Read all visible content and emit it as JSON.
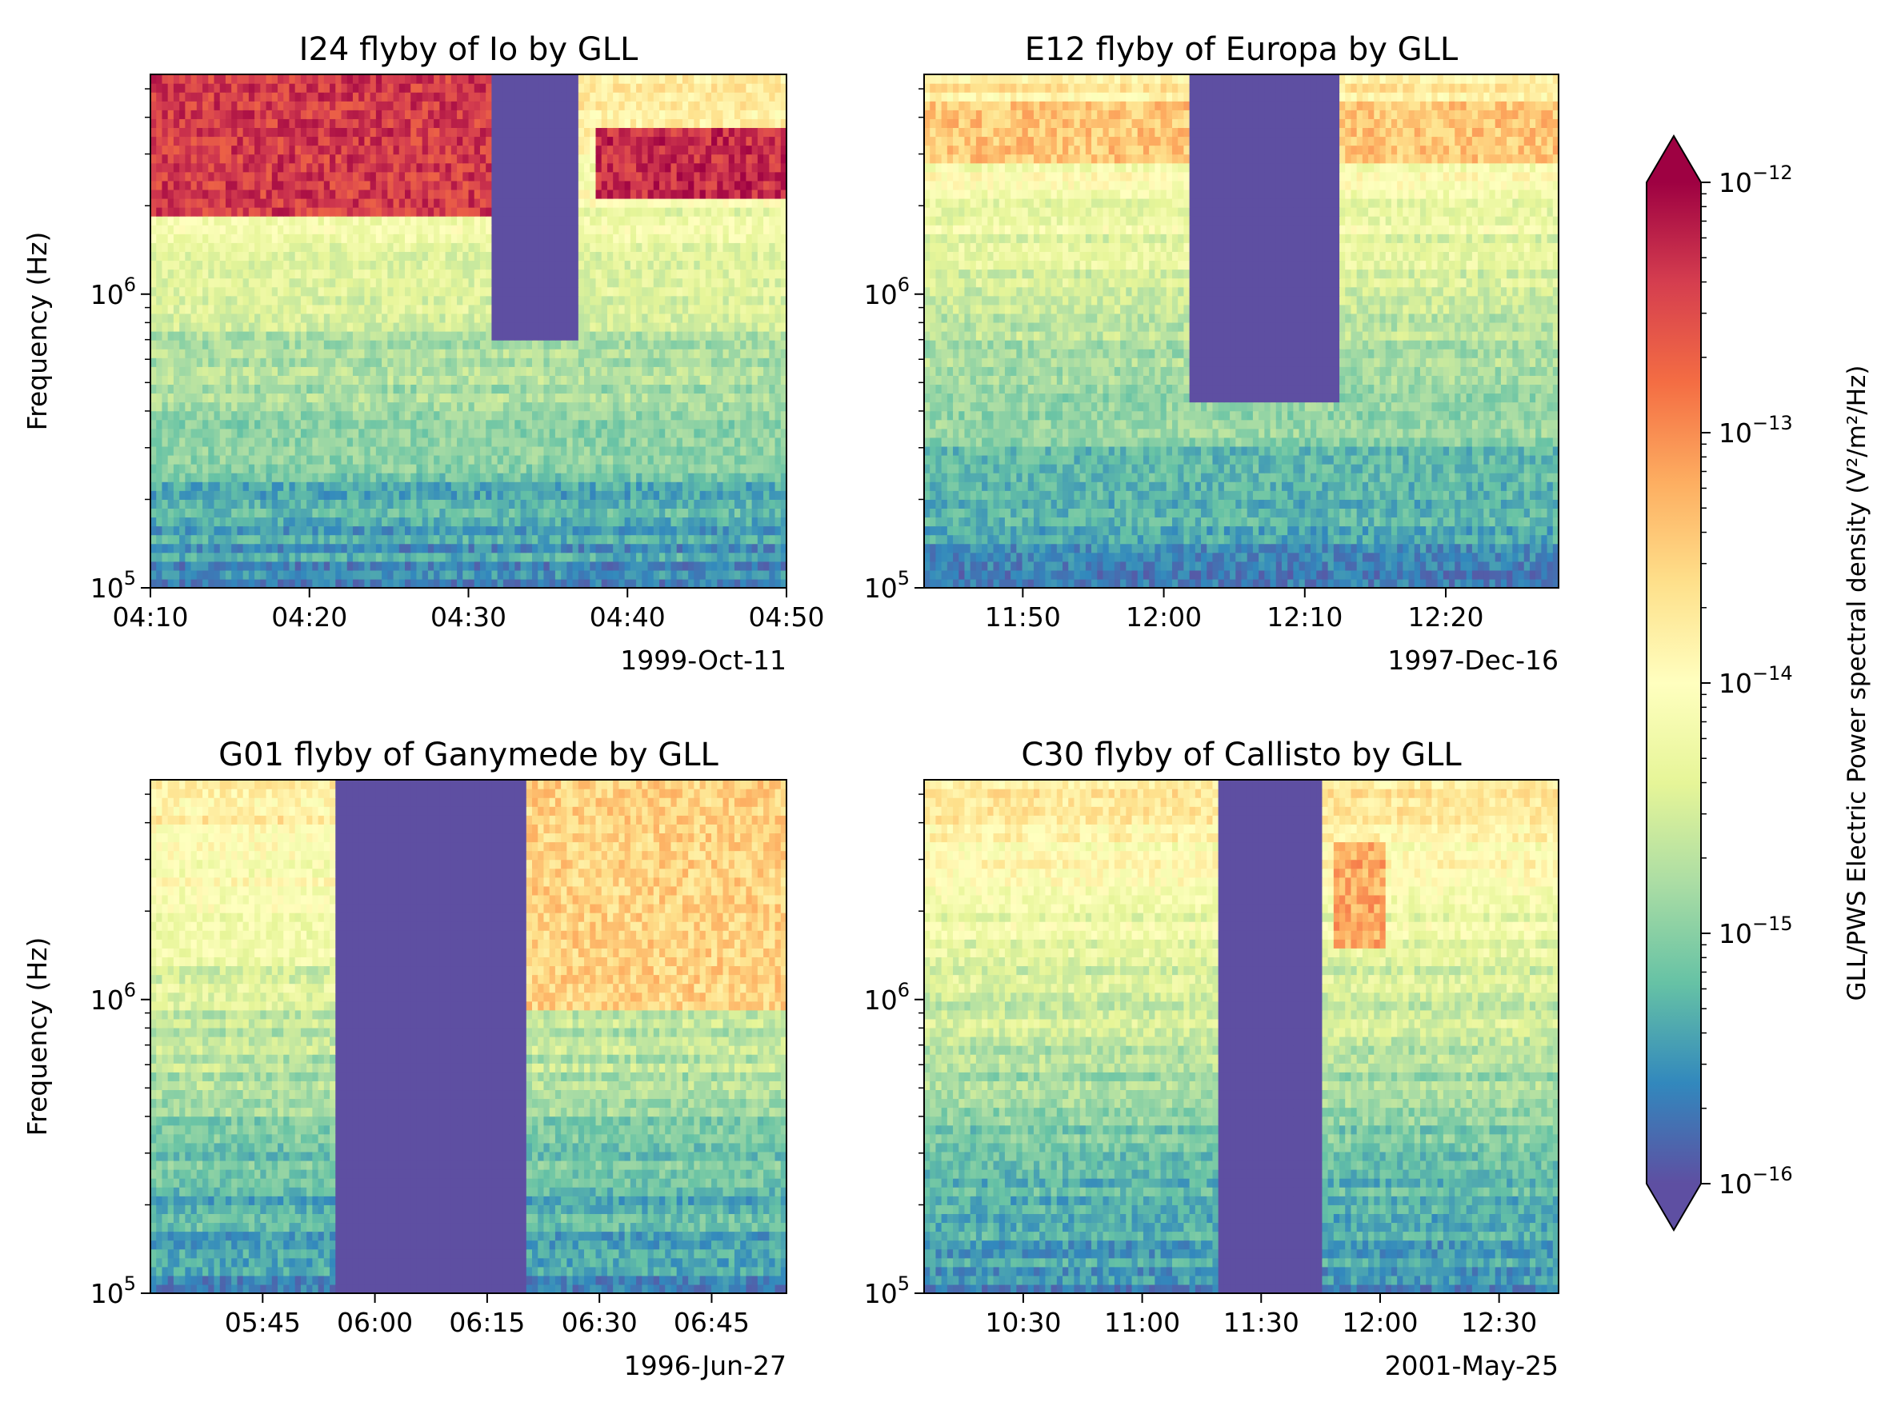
{
  "figure": {
    "colorbar": {
      "label": "GLL/PWS Electric Power spectral density (V²/m²/Hz)",
      "scale": "log",
      "range": [
        "1e-16",
        "1e-12"
      ],
      "extend": "both",
      "colormap_stops": [
        "#5e4fa2",
        "#3288bd",
        "#66c2a5",
        "#abdda4",
        "#e6f598",
        "#ffffbf",
        "#fee08b",
        "#fdae61",
        "#f46d43",
        "#d53e4f",
        "#9e0142"
      ],
      "ticks": [
        {
          "base": "10",
          "exp": "−16",
          "value": -16
        },
        {
          "base": "10",
          "exp": "−15",
          "value": -15
        },
        {
          "base": "10",
          "exp": "−14",
          "value": -14
        },
        {
          "base": "10",
          "exp": "−13",
          "value": -13
        },
        {
          "base": "10",
          "exp": "−12",
          "value": -12
        }
      ]
    }
  },
  "chart_data": [
    {
      "type": "heatmap",
      "title": "I24 flyby of Io by GLL",
      "ylabel": "Frequency (Hz)",
      "yscale": "log",
      "ylim": [
        100000,
        5600000
      ],
      "yticks": [
        {
          "base": "10",
          "exp": "5",
          "value": 100000
        },
        {
          "base": "10",
          "exp": "6",
          "value": 1000000
        }
      ],
      "xlim": [
        0,
        40
      ],
      "xticks": [
        {
          "label": "04:10",
          "t": 0
        },
        {
          "label": "04:20",
          "t": 10
        },
        {
          "label": "04:30",
          "t": 20
        },
        {
          "label": "04:40",
          "t": 30
        },
        {
          "label": "04:50",
          "t": 40
        }
      ],
      "date_label": "1999-Oct-11",
      "depletion": {
        "start": 21.5,
        "end": 27,
        "fmin": 700000,
        "fmax": 5600000
      },
      "hot_bands": [
        {
          "fmin": 1800000,
          "fmax": 5600000,
          "level": -12.4,
          "until": 21.5
        },
        {
          "fmin": 2100000,
          "fmax": 3600000,
          "level": -12.3,
          "from": 28
        }
      ],
      "seed": 11
    },
    {
      "type": "heatmap",
      "title": "E12 flyby of Europa by GLL",
      "ylabel": "",
      "yscale": "log",
      "ylim": [
        100000,
        5600000
      ],
      "yticks": [
        {
          "base": "10",
          "exp": "5",
          "value": 100000
        },
        {
          "base": "10",
          "exp": "6",
          "value": 1000000
        }
      ],
      "xlim": [
        0,
        45
      ],
      "xticks": [
        {
          "label": "11:50",
          "t": 7
        },
        {
          "label": "12:00",
          "t": 17
        },
        {
          "label": "12:10",
          "t": 27
        },
        {
          "label": "12:20",
          "t": 37
        }
      ],
      "date_label": "1997-Dec-16",
      "depletion": {
        "start": 19,
        "end": 29.5,
        "fmin": 420000,
        "fmax": 5600000
      },
      "hot_bands": [
        {
          "fmin": 2800000,
          "fmax": 4500000,
          "level": -13.4
        }
      ],
      "seed": 23
    },
    {
      "type": "heatmap",
      "title": "G01 flyby of Ganymede by GLL",
      "ylabel": "Frequency (Hz)",
      "yscale": "log",
      "ylim": [
        100000,
        5600000
      ],
      "yticks": [
        {
          "base": "10",
          "exp": "5",
          "value": 100000
        },
        {
          "base": "10",
          "exp": "6",
          "value": 1000000
        }
      ],
      "xlim": [
        0,
        85
      ],
      "xticks": [
        {
          "label": "05:45",
          "t": 15
        },
        {
          "label": "06:00",
          "t": 30
        },
        {
          "label": "06:15",
          "t": 45
        },
        {
          "label": "06:30",
          "t": 60
        },
        {
          "label": "06:45",
          "t": 75
        }
      ],
      "date_label": "1996-Jun-27",
      "depletion": {
        "start": 25,
        "end": 50,
        "fmin": 100000,
        "fmax": 5600000
      },
      "hot_bands": [
        {
          "fmin": 900000,
          "fmax": 5600000,
          "level": -13.5,
          "from": 50
        }
      ],
      "seed": 37
    },
    {
      "type": "heatmap",
      "title": "C30 flyby of Callisto by GLL",
      "ylabel": "",
      "yscale": "log",
      "ylim": [
        100000,
        5600000
      ],
      "yticks": [
        {
          "base": "10",
          "exp": "5",
          "value": 100000
        },
        {
          "base": "10",
          "exp": "6",
          "value": 1000000
        }
      ],
      "xlim": [
        0,
        160
      ],
      "xticks": [
        {
          "label": "10:30",
          "t": 25
        },
        {
          "label": "11:00",
          "t": 55
        },
        {
          "label": "11:30",
          "t": 85
        },
        {
          "label": "12:00",
          "t": 115
        },
        {
          "label": "12:30",
          "t": 145
        }
      ],
      "date_label": "2001-May-25",
      "depletion": {
        "start": 74,
        "end": 100,
        "fmin": 100000,
        "fmax": 5600000
      },
      "hot_bands": [
        {
          "fmin": 1500000,
          "fmax": 3500000,
          "level": -13.2,
          "from": 104,
          "until": 116
        }
      ],
      "seed": 53
    }
  ]
}
